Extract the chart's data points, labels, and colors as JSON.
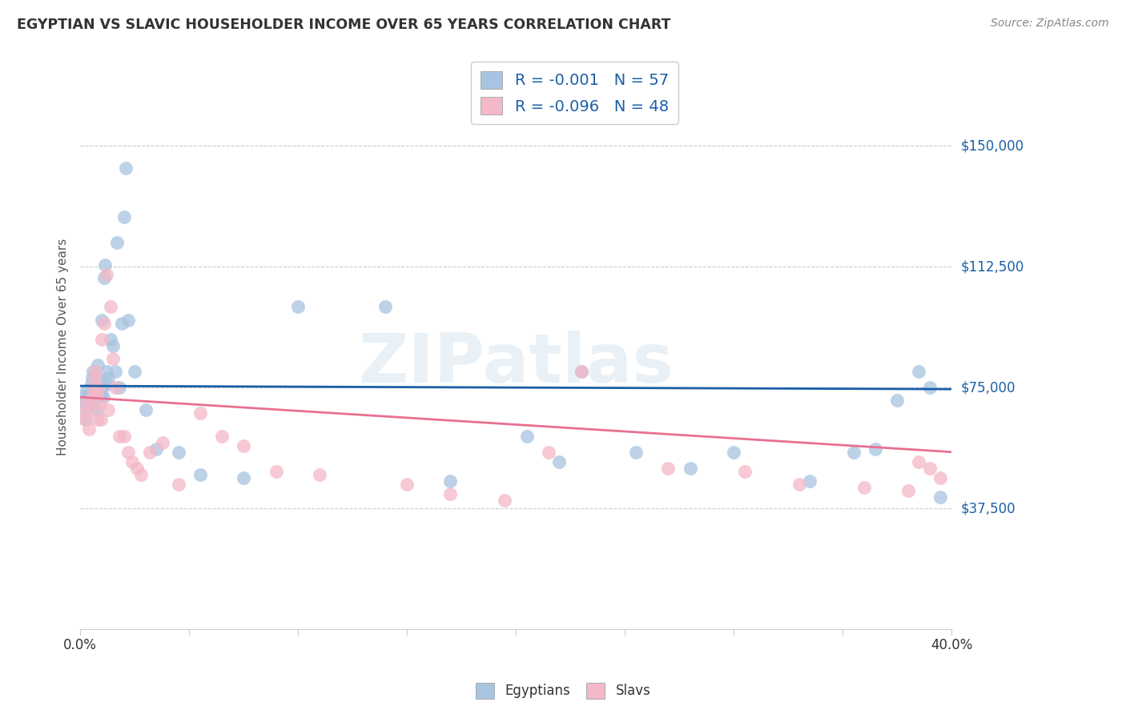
{
  "title": "EGYPTIAN VS SLAVIC HOUSEHOLDER INCOME OVER 65 YEARS CORRELATION CHART",
  "source": "Source: ZipAtlas.com",
  "ylabel": "Householder Income Over 65 years",
  "xlim": [
    0.0,
    40.0
  ],
  "ylim": [
    0,
    175000
  ],
  "yticks": [
    0,
    37500,
    75000,
    112500,
    150000
  ],
  "ytick_labels": [
    "",
    "$37,500",
    "$75,000",
    "$112,500",
    "$150,000"
  ],
  "xtick_vals": [
    0,
    5,
    10,
    15,
    20,
    25,
    30,
    35,
    40
  ],
  "watermark": "ZIPatlas",
  "legend_r1": "-0.001",
  "legend_n1": "57",
  "legend_r2": "-0.096",
  "legend_n2": "48",
  "egyptians_color": "#a8c4e0",
  "slavs_color": "#f4b8c8",
  "egyptians_line_color": "#1a5fa8",
  "slavs_line_color": "#e87090",
  "right_label_color": "#1a5fa8",
  "grid_color": "#cccccc",
  "bg_color": "#ffffff",
  "title_color": "#333333",
  "source_color": "#888888",
  "egyptians_x": [
    0.1,
    0.15,
    0.2,
    0.25,
    0.3,
    0.35,
    0.4,
    0.45,
    0.5,
    0.55,
    0.6,
    0.65,
    0.7,
    0.75,
    0.8,
    0.85,
    0.9,
    0.95,
    1.0,
    1.0,
    1.05,
    1.1,
    1.15,
    1.2,
    1.25,
    1.3,
    1.4,
    1.5,
    1.6,
    1.7,
    1.8,
    1.9,
    2.0,
    2.1,
    2.2,
    2.5,
    3.0,
    3.5,
    4.5,
    5.5,
    7.5,
    10.0,
    14.0,
    17.0,
    20.5,
    22.0,
    23.0,
    25.5,
    28.0,
    30.0,
    33.5,
    35.5,
    36.5,
    37.5,
    38.5,
    39.0,
    39.5
  ],
  "egyptians_y": [
    68000,
    72000,
    70000,
    65000,
    74000,
    69000,
    73000,
    71000,
    76000,
    78000,
    80000,
    75000,
    72000,
    68000,
    82000,
    77000,
    75000,
    73000,
    96000,
    75000,
    72000,
    109000,
    113000,
    80000,
    76000,
    78000,
    90000,
    88000,
    80000,
    120000,
    75000,
    95000,
    128000,
    143000,
    96000,
    80000,
    68000,
    56000,
    55000,
    48000,
    47000,
    100000,
    100000,
    46000,
    60000,
    52000,
    80000,
    55000,
    50000,
    55000,
    46000,
    55000,
    56000,
    71000,
    80000,
    75000,
    41000
  ],
  "slavs_x": [
    0.1,
    0.2,
    0.3,
    0.4,
    0.5,
    0.55,
    0.6,
    0.65,
    0.7,
    0.75,
    0.8,
    0.85,
    0.9,
    0.95,
    1.0,
    1.1,
    1.2,
    1.3,
    1.4,
    1.5,
    1.6,
    1.8,
    2.0,
    2.2,
    2.4,
    2.6,
    2.8,
    3.2,
    3.8,
    4.5,
    5.5,
    6.5,
    7.5,
    9.0,
    11.0,
    15.0,
    17.0,
    19.5,
    21.5,
    23.0,
    27.0,
    30.5,
    33.0,
    36.0,
    38.0,
    38.5,
    39.0,
    39.5
  ],
  "slavs_y": [
    67000,
    65000,
    70000,
    62000,
    68000,
    72000,
    75000,
    78000,
    80000,
    73000,
    65000,
    75000,
    70000,
    65000,
    90000,
    95000,
    110000,
    68000,
    100000,
    84000,
    75000,
    60000,
    60000,
    55000,
    52000,
    50000,
    48000,
    55000,
    58000,
    45000,
    67000,
    60000,
    57000,
    49000,
    48000,
    45000,
    42000,
    40000,
    55000,
    80000,
    50000,
    49000,
    45000,
    44000,
    43000,
    52000,
    50000,
    47000
  ]
}
